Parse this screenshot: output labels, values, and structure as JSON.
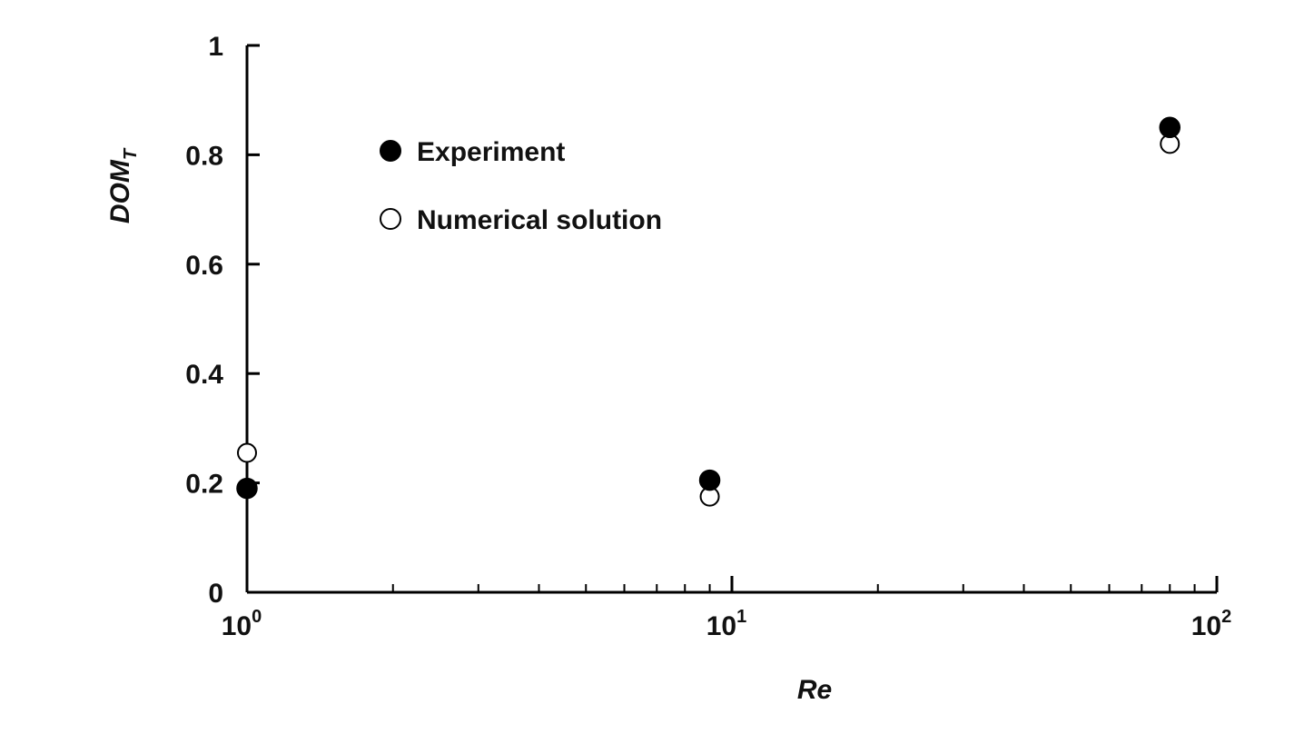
{
  "chart_data": {
    "type": "scatter",
    "title": "",
    "xlabel": "Re",
    "ylabel": "DOM",
    "ylabel_subscript": "T",
    "x_scale": "log",
    "xlim": [
      1,
      100
    ],
    "ylim": [
      0,
      1
    ],
    "x_ticks": [
      {
        "value": 1,
        "base": "10",
        "exp": "0"
      },
      {
        "value": 10,
        "base": "10",
        "exp": "1"
      },
      {
        "value": 100,
        "base": "10",
        "exp": "2"
      }
    ],
    "y_ticks": [
      {
        "value": 0,
        "label": "0"
      },
      {
        "value": 0.2,
        "label": "0.2"
      },
      {
        "value": 0.4,
        "label": "0.4"
      },
      {
        "value": 0.6,
        "label": "0.6"
      },
      {
        "value": 0.8,
        "label": "0.8"
      },
      {
        "value": 1,
        "label": "1"
      }
    ],
    "grid": false,
    "legend_position": "top-left",
    "series": [
      {
        "name": "Experiment",
        "marker": "filled-circle",
        "color": "#000000",
        "points": [
          {
            "x": 1,
            "y": 0.19
          },
          {
            "x": 9,
            "y": 0.205
          },
          {
            "x": 80,
            "y": 0.85
          }
        ]
      },
      {
        "name": "Numerical solution",
        "marker": "open-circle",
        "color": "#000000",
        "points": [
          {
            "x": 1,
            "y": 0.255
          },
          {
            "x": 9,
            "y": 0.175
          },
          {
            "x": 80,
            "y": 0.82
          }
        ]
      }
    ]
  }
}
